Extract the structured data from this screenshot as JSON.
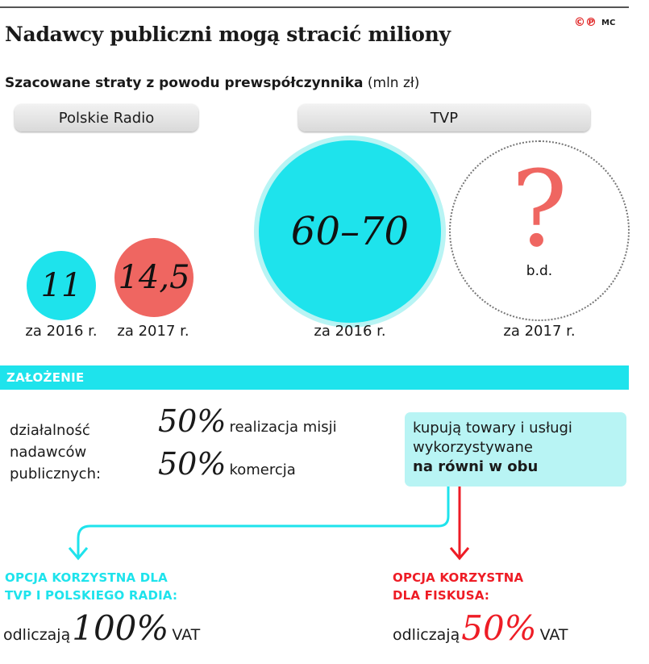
{
  "title": "Nadawcy publiczni mogą stracić miliony",
  "logo": {
    "mark": "©℗",
    "initials": "MC"
  },
  "subtitle": {
    "bold": "Szacowane straty z powodu prewspółczynnika",
    "unit": "(mln zł)"
  },
  "groups": [
    {
      "label": "Polskie Radio"
    },
    {
      "label": "TVP"
    }
  ],
  "chart_data": {
    "type": "bubble",
    "title": "Nadawcy publiczni mogą stracić miliony",
    "subtitle": "Szacowane straty z powodu prewspółczynnika (mln zł)",
    "items": [
      {
        "group": "Polskie Radio",
        "label": "za 2016 r.",
        "value_text": "11",
        "value": 11,
        "color": "#1ee3ec"
      },
      {
        "group": "Polskie Radio",
        "label": "za 2017 r.",
        "value_text": "14,5",
        "value": 14.5,
        "color": "#ef6661"
      },
      {
        "group": "TVP",
        "label": "za 2016 r.",
        "value_text": "60–70",
        "value_range": [
          60,
          70
        ],
        "color": "#1ee3ec"
      },
      {
        "group": "TVP",
        "label": "za 2017 r.",
        "value_text": "?",
        "note": "b.d.",
        "value": null,
        "color": "#ef6661"
      }
    ]
  },
  "assumption": {
    "header": "ZAŁOŻENIE",
    "activity_lines": [
      "działalność",
      "nadawców",
      "publicznych:"
    ],
    "split": [
      {
        "percent": "50%",
        "label": "realizacja misji"
      },
      {
        "percent": "50%",
        "label": "komercja"
      }
    ],
    "box_lines": [
      "kupują towary i usługi",
      "wykorzystywane"
    ],
    "box_bold": "na równi w obu"
  },
  "options": [
    {
      "title_lines": [
        "OPCJA KORZYSTNA DLA",
        "TVP I POLSKIEGO RADIA:"
      ],
      "verb": "odliczają",
      "percent": "100%",
      "suffix": "VAT",
      "color": "#1ee3ec"
    },
    {
      "title_lines": [
        "OPCJA KORZYSTNA",
        "DLA FISKUSA:"
      ],
      "verb": "odliczają",
      "percent": "50%",
      "suffix": "VAT",
      "color": "#ee1c25"
    }
  ],
  "colors": {
    "cyan": "#1ee3ec",
    "salmon": "#ef6661",
    "red": "#ee1c25",
    "box": "#b8f4f4"
  }
}
